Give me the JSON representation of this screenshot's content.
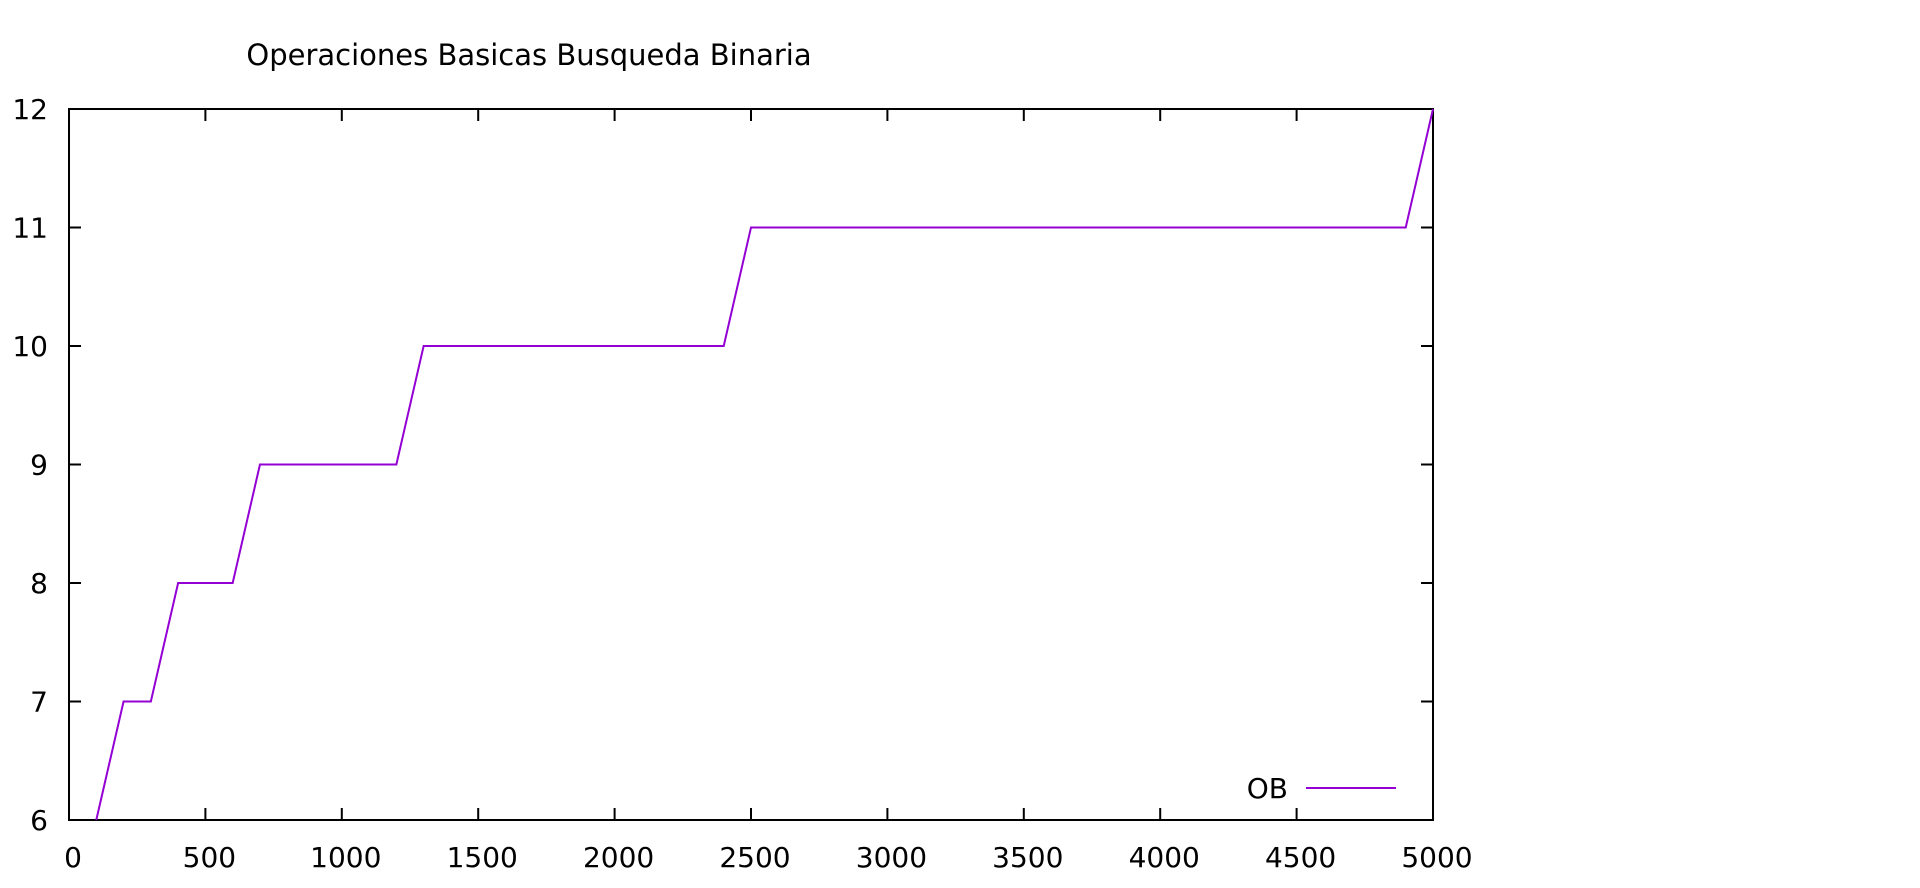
{
  "chart_data": {
    "type": "line",
    "title": "Operaciones Basicas Busqueda Binaria",
    "xlabel": "",
    "ylabel": "",
    "xlim": [
      0,
      5000
    ],
    "ylim": [
      6,
      12
    ],
    "x_ticks": [
      "0",
      "500",
      "1000",
      "1500",
      "2000",
      "2500",
      "3000",
      "3500",
      "4000",
      "4500",
      "5000"
    ],
    "y_ticks": [
      "6",
      "7",
      "8",
      "9",
      "10",
      "11",
      "12"
    ],
    "grid": false,
    "legend_position": "bottom-right",
    "series": [
      {
        "name": "OB",
        "color": "#9400d3",
        "x": [
          100,
          200,
          300,
          400,
          500,
          600,
          700,
          800,
          900,
          1000,
          1100,
          1200,
          1300,
          1400,
          1500,
          1600,
          1700,
          1800,
          1900,
          2000,
          2100,
          2200,
          2300,
          2400,
          2500,
          2600,
          2700,
          2800,
          2900,
          3000,
          3100,
          3200,
          3300,
          3400,
          3500,
          3600,
          3700,
          3800,
          3900,
          4000,
          4100,
          4200,
          4300,
          4400,
          4500,
          4600,
          4700,
          4800,
          4900,
          5000
        ],
        "y": [
          6,
          7,
          7,
          8,
          8,
          8,
          9,
          9,
          9,
          9,
          9,
          9,
          10,
          10,
          10,
          10,
          10,
          10,
          10,
          10,
          10,
          10,
          10,
          10,
          11,
          11,
          11,
          11,
          11,
          11,
          11,
          11,
          11,
          11,
          11,
          11,
          11,
          11,
          11,
          11,
          11,
          11,
          11,
          11,
          11,
          11,
          11,
          11,
          11,
          12
        ]
      }
    ]
  }
}
